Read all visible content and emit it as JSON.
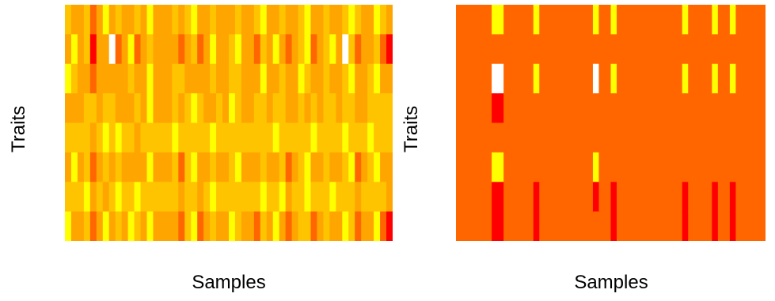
{
  "chart_data": [
    {
      "type": "heatmap",
      "xlabel": "Samples",
      "ylabel": "Traits",
      "rows": 8,
      "cols": 52,
      "legend": "none",
      "grid": false,
      "palette": [
        "#ff0000",
        "#ff6600",
        "#ffa500",
        "#ffc400",
        "#ffff00",
        "#ffffff"
      ],
      "base_levels": [
        2,
        2,
        2,
        2,
        3,
        2,
        3,
        2
      ],
      "column_overrides": [
        {
          "col": 0,
          "cells": [
            3,
            2,
            4,
            2,
            3,
            2,
            3,
            4
          ]
        },
        {
          "col": 1,
          "cells": [
            2,
            4,
            3,
            2,
            3,
            4,
            3,
            2
          ]
        },
        {
          "col": 3,
          "cells": [
            3,
            3,
            2,
            3,
            3,
            3,
            4,
            3
          ]
        },
        {
          "col": 4,
          "cells": [
            1,
            0,
            1,
            3,
            2,
            1,
            2,
            1
          ]
        },
        {
          "col": 6,
          "cells": [
            4,
            2,
            2,
            3,
            4,
            3,
            2,
            4
          ]
        },
        {
          "col": 7,
          "cells": [
            2,
            5,
            2,
            3,
            3,
            2,
            3,
            2
          ]
        },
        {
          "col": 8,
          "cells": [
            3,
            1,
            2,
            2,
            4,
            3,
            4,
            3
          ]
        },
        {
          "col": 10,
          "cells": [
            2,
            4,
            3,
            2,
            3,
            2,
            3,
            4
          ]
        },
        {
          "col": 11,
          "cells": [
            3,
            1,
            2,
            3,
            2,
            2,
            4,
            3
          ]
        },
        {
          "col": 13,
          "cells": [
            4,
            3,
            4,
            4,
            3,
            4,
            3,
            4
          ]
        },
        {
          "col": 17,
          "cells": [
            3,
            2,
            3,
            3,
            4,
            3,
            3,
            2
          ]
        },
        {
          "col": 18,
          "cells": [
            2,
            1,
            3,
            2,
            3,
            1,
            2,
            1
          ]
        },
        {
          "col": 19,
          "cells": [
            3,
            2,
            2,
            3,
            3,
            3,
            3,
            3
          ]
        },
        {
          "col": 20,
          "cells": [
            4,
            3,
            2,
            4,
            3,
            4,
            3,
            4
          ]
        },
        {
          "col": 21,
          "cells": [
            2,
            1,
            2,
            3,
            3,
            2,
            2,
            1
          ]
        },
        {
          "col": 23,
          "cells": [
            3,
            4,
            3,
            2,
            4,
            3,
            4,
            3
          ]
        },
        {
          "col": 24,
          "cells": [
            2,
            2,
            2,
            3,
            3,
            2,
            3,
            2
          ]
        },
        {
          "col": 26,
          "cells": [
            2,
            3,
            3,
            4,
            3,
            3,
            3,
            4
          ]
        },
        {
          "col": 27,
          "cells": [
            3,
            4,
            3,
            3,
            3,
            4,
            3,
            3
          ]
        },
        {
          "col": 30,
          "cells": [
            3,
            1,
            2,
            3,
            3,
            2,
            3,
            1
          ]
        },
        {
          "col": 31,
          "cells": [
            4,
            3,
            4,
            3,
            3,
            3,
            4,
            3
          ]
        },
        {
          "col": 33,
          "cells": [
            2,
            4,
            2,
            3,
            4,
            2,
            3,
            4
          ]
        },
        {
          "col": 34,
          "cells": [
            3,
            2,
            3,
            3,
            3,
            3,
            4,
            2
          ]
        },
        {
          "col": 35,
          "cells": [
            2,
            1,
            2,
            2,
            3,
            1,
            2,
            1
          ]
        },
        {
          "col": 37,
          "cells": [
            3,
            3,
            4,
            3,
            3,
            3,
            3,
            3
          ]
        },
        {
          "col": 38,
          "cells": [
            4,
            4,
            3,
            2,
            3,
            4,
            4,
            3
          ]
        },
        {
          "col": 39,
          "cells": [
            2,
            1,
            2,
            3,
            4,
            2,
            3,
            1
          ]
        },
        {
          "col": 41,
          "cells": [
            3,
            3,
            3,
            3,
            3,
            3,
            3,
            3
          ]
        },
        {
          "col": 42,
          "cells": [
            2,
            4,
            2,
            3,
            3,
            2,
            4,
            2
          ]
        },
        {
          "col": 44,
          "cells": [
            3,
            5,
            3,
            3,
            4,
            3,
            3,
            4
          ]
        },
        {
          "col": 45,
          "cells": [
            4,
            3,
            4,
            3,
            3,
            4,
            3,
            3
          ]
        },
        {
          "col": 46,
          "cells": [
            3,
            1,
            2,
            2,
            3,
            1,
            2,
            1
          ]
        },
        {
          "col": 48,
          "cells": [
            2,
            2,
            3,
            3,
            4,
            3,
            3,
            2
          ]
        },
        {
          "col": 49,
          "cells": [
            4,
            3,
            4,
            3,
            3,
            4,
            3,
            4
          ]
        },
        {
          "col": 50,
          "cells": [
            3,
            1,
            2,
            3,
            3,
            2,
            3,
            1
          ]
        },
        {
          "col": 51,
          "cells": [
            2,
            0,
            2,
            3,
            3,
            2,
            2,
            0
          ]
        }
      ]
    },
    {
      "type": "heatmap",
      "xlabel": "Samples",
      "ylabel": "Traits",
      "rows": 8,
      "cols": 52,
      "legend": "none",
      "grid": false,
      "palette": [
        "#ff0000",
        "#ff6600",
        "#ffa500",
        "#ffc400",
        "#ffff00",
        "#ffffff"
      ],
      "base_levels": [
        1,
        1,
        1,
        1,
        1,
        1,
        1,
        1
      ],
      "column_overrides": [
        {
          "col": 6,
          "cells": [
            4,
            1,
            5,
            0,
            1,
            4,
            0,
            0
          ]
        },
        {
          "col": 7,
          "cells": [
            4,
            1,
            5,
            0,
            1,
            4,
            0,
            0
          ]
        },
        {
          "col": 13,
          "cells": [
            4,
            1,
            4,
            1,
            1,
            1,
            0,
            0
          ]
        },
        {
          "col": 23,
          "cells": [
            4,
            1,
            5,
            1,
            1,
            4,
            0,
            1
          ]
        },
        {
          "col": 26,
          "cells": [
            4,
            1,
            4,
            1,
            1,
            1,
            0,
            0
          ]
        },
        {
          "col": 38,
          "cells": [
            4,
            1,
            4,
            1,
            1,
            1,
            0,
            0
          ]
        },
        {
          "col": 43,
          "cells": [
            4,
            1,
            4,
            1,
            1,
            1,
            0,
            0
          ]
        },
        {
          "col": 46,
          "cells": [
            4,
            1,
            4,
            1,
            1,
            1,
            0,
            0
          ]
        }
      ]
    }
  ]
}
